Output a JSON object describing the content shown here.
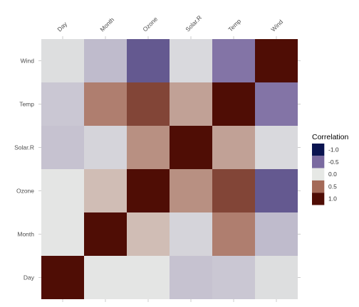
{
  "chart_data": {
    "type": "heatmap",
    "title": "",
    "xlabel": "",
    "ylabel": "",
    "x_categories": [
      "Day",
      "Month",
      "Ozone",
      "Solar.R",
      "Temp",
      "Wind"
    ],
    "y_categories_top_to_bottom": [
      "Wind",
      "Temp",
      "Solar.R",
      "Ozone",
      "Month",
      "Day"
    ],
    "matrix": [
      [
        -0.04,
        -0.18,
        -0.6,
        -0.06,
        -0.46,
        1.0
      ],
      [
        -0.13,
        0.42,
        0.7,
        0.28,
        1.0,
        -0.46
      ],
      [
        -0.15,
        -0.08,
        0.35,
        1.0,
        0.28,
        -0.06
      ],
      [
        -0.01,
        0.17,
        1.0,
        0.35,
        0.7,
        -0.6
      ],
      [
        -0.01,
        1.0,
        0.17,
        -0.08,
        0.42,
        -0.18
      ],
      [
        1.0,
        -0.01,
        -0.01,
        -0.15,
        -0.13,
        -0.04
      ]
    ],
    "color_scale": {
      "low": "#0a1450",
      "mid": "#e6e8e5",
      "high": "#4f0d05",
      "range": [
        -1,
        1
      ]
    },
    "legend": {
      "title": "Correlation",
      "entries": [
        {
          "label": "-1.0",
          "value": -1.0,
          "color": "#0a1450"
        },
        {
          "label": "-0.5",
          "value": -0.5,
          "color": "#7a6aa0"
        },
        {
          "label": "0.0",
          "value": 0.0,
          "color": "#e6e8e5"
        },
        {
          "label": "0.5",
          "value": 0.5,
          "color": "#a46a58"
        },
        {
          "label": "1.0",
          "value": 1.0,
          "color": "#4f0d05"
        }
      ],
      "position": "right"
    },
    "grid": false
  }
}
